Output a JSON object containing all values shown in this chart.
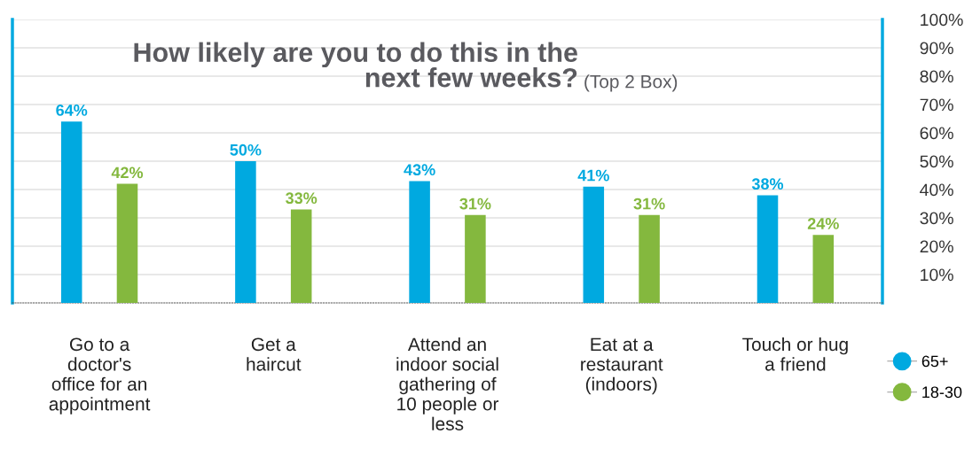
{
  "chart_data": {
    "type": "bar",
    "title": "How likely are you to do this in the\nnext few weeks?",
    "subtitle": "(Top 2 Box)",
    "categories": [
      "Go to a\ndoctor's\noffice for an\nappointment",
      "Get a\nhaircut",
      "Attend an\nindoor social\ngathering of\n10 people or\nless",
      "Eat at a\nrestaurant\n(indoors)",
      "Touch or hug\na friend"
    ],
    "series": [
      {
        "name": "65+",
        "color": "#00a9e0",
        "values": [
          64,
          50,
          43,
          41,
          38
        ],
        "value_labels": [
          "64%",
          "50%",
          "43%",
          "41%",
          "38%"
        ]
      },
      {
        "name": "18-30",
        "color": "#84b83e",
        "values": [
          42,
          33,
          31,
          31,
          24
        ],
        "value_labels": [
          "42%",
          "33%",
          "31%",
          "31%",
          "24%"
        ]
      }
    ],
    "ylim": [
      0,
      100
    ],
    "yticks": [
      {
        "value": 10,
        "label": "10%"
      },
      {
        "value": 20,
        "label": "20%"
      },
      {
        "value": 30,
        "label": "30%"
      },
      {
        "value": 40,
        "label": "40%"
      },
      {
        "value": 50,
        "label": "50%"
      },
      {
        "value": 60,
        "label": "60%"
      },
      {
        "value": 70,
        "label": "70%"
      },
      {
        "value": 80,
        "label": "80%"
      },
      {
        "value": 90,
        "label": "90%"
      },
      {
        "value": 100,
        "label": "100%"
      }
    ],
    "grid": "y",
    "legend": "bottom right"
  }
}
